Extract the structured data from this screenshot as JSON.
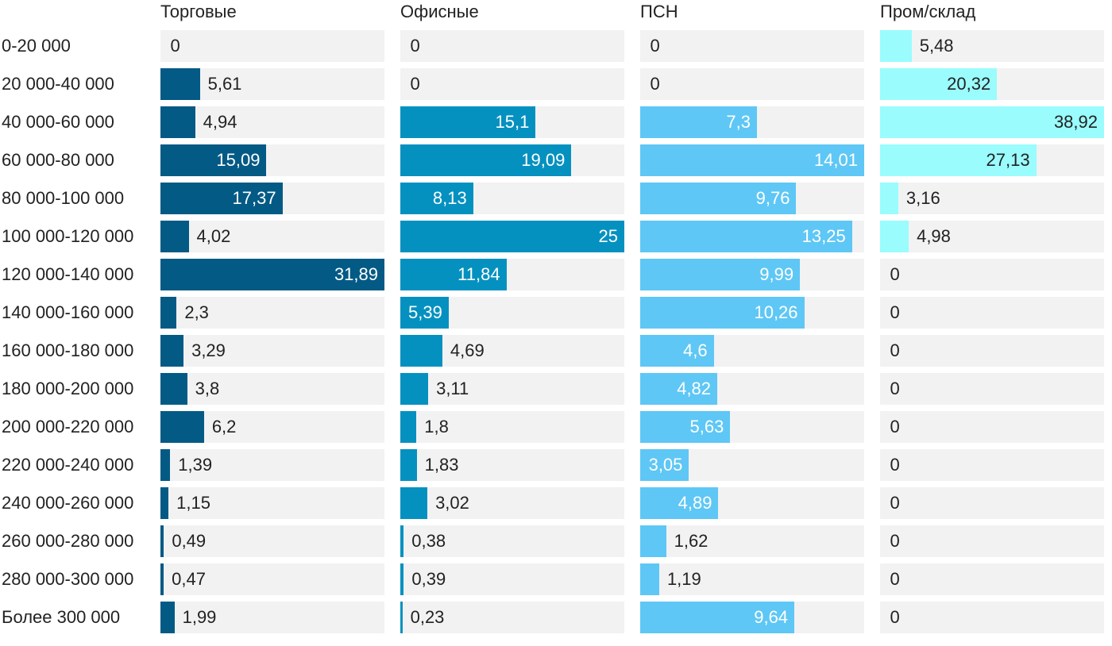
{
  "chart_data": {
    "type": "bar",
    "orientation": "horizontal",
    "layout": "small-multiples",
    "categories": [
      "0-20 000",
      "20 000-40 000",
      "40 000-60 000",
      "60 000-80 000",
      "80 000-100 000",
      "100 000-120 000",
      "120 000-140 000",
      "140 000-160 000",
      "160 000-180 000",
      "180 000-200 000",
      "200 000-220 000",
      "220 000-240 000",
      "240 000-260 000",
      "260 000-280 000",
      "280 000-300 000",
      "Более 300 000"
    ],
    "series": [
      {
        "name": "Торговые",
        "color": "#035a85",
        "max": 31.89,
        "values": [
          0,
          5.61,
          4.94,
          15.09,
          17.37,
          4.02,
          31.89,
          2.3,
          3.29,
          3.8,
          6.2,
          1.39,
          1.15,
          0.49,
          0.47,
          1.99
        ],
        "labels": [
          "0",
          "5,61",
          "4,94",
          "15,09",
          "17,37",
          "4,02",
          "31,89",
          "2,3",
          "3,29",
          "3,8",
          "6,2",
          "1,39",
          "1,15",
          "0,49",
          "0,47",
          "1,99"
        ]
      },
      {
        "name": "Офисные",
        "color": "#0591c0",
        "max": 25,
        "values": [
          0,
          0,
          15.1,
          19.09,
          8.13,
          25,
          11.84,
          5.39,
          4.69,
          3.11,
          1.8,
          1.83,
          3.02,
          0.38,
          0.39,
          0.23
        ],
        "labels": [
          "0",
          "0",
          "15,1",
          "19,09",
          "8,13",
          "25",
          "11,84",
          "5,39",
          "4,69",
          "3,11",
          "1,8",
          "1,83",
          "3,02",
          "0,38",
          "0,39",
          "0,23"
        ]
      },
      {
        "name": "ПСН",
        "color": "#5ec7f5",
        "max": 14.01,
        "values": [
          0,
          0,
          7.3,
          14.01,
          9.76,
          13.25,
          9.99,
          10.26,
          4.6,
          4.82,
          5.63,
          3.05,
          4.89,
          1.62,
          1.19,
          9.64
        ],
        "labels": [
          "0",
          "0",
          "7,3",
          "14,01",
          "9,76",
          "13,25",
          "9,99",
          "10,26",
          "4,6",
          "4,82",
          "5,63",
          "3,05",
          "4,89",
          "1,62",
          "1,19",
          "9,64"
        ]
      },
      {
        "name": "Пром/склад",
        "color": "#9afcfc",
        "max": 38.92,
        "values": [
          5.48,
          20.32,
          38.92,
          27.13,
          3.16,
          4.98,
          0,
          0,
          0,
          0,
          0,
          0,
          0,
          0,
          0,
          0
        ],
        "labels": [
          "5,48",
          "20,32",
          "38,92",
          "27,13",
          "3,16",
          "4,98",
          "0",
          "0",
          "0",
          "0",
          "0",
          "0",
          "0",
          "0",
          "0",
          "0"
        ]
      }
    ]
  }
}
